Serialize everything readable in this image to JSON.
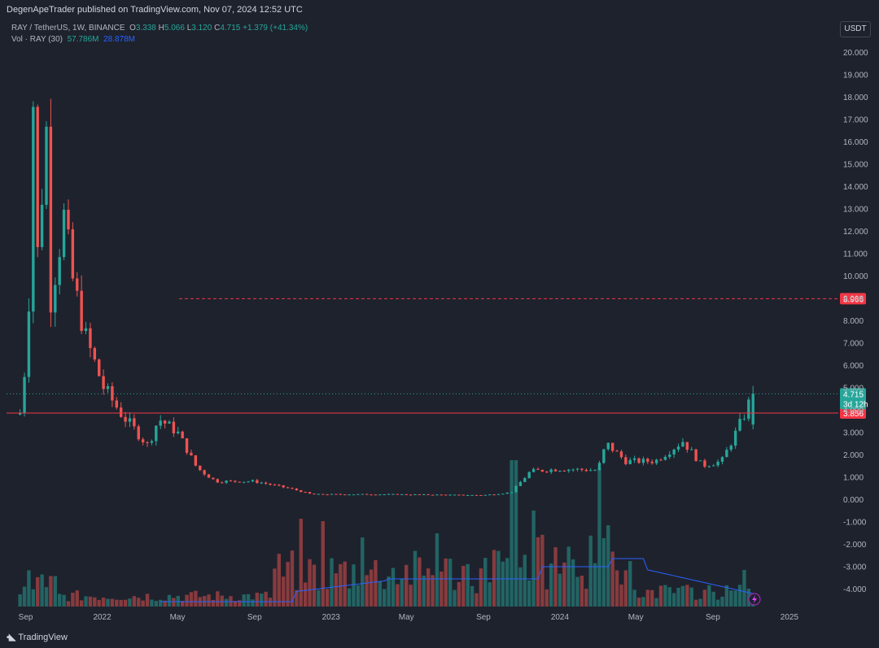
{
  "header": {
    "published": "DegenApeTrader published on TradingView.com, Nov 07, 2024 12:52 UTC",
    "symbol": "RAY / TetherUS, 1W, BINANCE",
    "o_label": "O",
    "o_value": "3.338",
    "h_label": "H",
    "h_value": "5.066",
    "l_label": "L",
    "l_value": "3.120",
    "c_label": "C",
    "c_value": "4.715",
    "change": "+1.379 (+41.34%)",
    "vol_label": "Vol · RAY (30)",
    "vol_value": "57.786M",
    "vol_ma_value": "28.878M",
    "currency_button": "USDT"
  },
  "footer": {
    "brand": "TradingView"
  },
  "chart_data": {
    "type": "candlestick",
    "title": "RAY / TetherUS, 1W, BINANCE",
    "y_ticks": [
      "20.000",
      "19.000",
      "18.000",
      "17.000",
      "16.000",
      "15.000",
      "14.000",
      "13.000",
      "12.000",
      "11.000",
      "10.000",
      "9.000",
      "8.000",
      "7.000",
      "6.000",
      "5.000",
      "4.000",
      "3.000",
      "2.000",
      "1.000",
      "0.000",
      "-1.000",
      "-2.000",
      "-3.000",
      "-4.000"
    ],
    "y_tick_values": [
      20,
      19,
      18,
      17,
      16,
      15,
      14,
      13,
      12,
      11,
      10,
      9,
      8,
      7,
      6,
      5,
      4,
      3,
      2,
      1,
      0,
      -1,
      -2,
      -3,
      -4
    ],
    "x_ticks": [
      "Sep",
      "2022",
      "May",
      "Sep",
      "2023",
      "May",
      "Sep",
      "2024",
      "May",
      "Sep",
      "2025"
    ],
    "x_tick_dates": [
      "2021-09-01",
      "2022-01-01",
      "2022-05-01",
      "2022-09-01",
      "2023-01-01",
      "2023-05-01",
      "2023-09-01",
      "2024-01-01",
      "2024-05-01",
      "2024-09-01",
      "2025-01-01"
    ],
    "ylim": [
      -4.9,
      20.6
    ],
    "xlim": [
      "2021-07-22",
      "2025-03-20"
    ],
    "horizontal_lines": [
      {
        "value": 8.966,
        "label": "8.966",
        "style": "dashed",
        "color": "#f23645"
      },
      {
        "value": 3.856,
        "label": "3.856",
        "style": "solid",
        "color": "#f23645"
      },
      {
        "value": 4.715,
        "label": "4.715",
        "sublabel": "3d 12h",
        "style": "dotted",
        "color": "#26a69a"
      }
    ],
    "key_points": [
      {
        "date": "2021-08-23",
        "price": 3.86
      },
      {
        "date": "2021-08-30",
        "price": 5.7
      },
      {
        "date": "2021-09-06",
        "price": 9.0
      },
      {
        "date": "2021-09-13",
        "price": 17.8
      },
      {
        "date": "2021-09-20",
        "price": 11.0
      },
      {
        "date": "2021-10-04",
        "price": 16.5
      },
      {
        "date": "2021-10-11",
        "price": 9.0
      },
      {
        "date": "2021-11-01",
        "price": 12.6
      },
      {
        "date": "2021-11-15",
        "price": 9.8
      },
      {
        "date": "2021-12-06",
        "price": 7.2
      },
      {
        "date": "2022-01-03",
        "price": 5.0
      },
      {
        "date": "2022-02-01",
        "price": 3.8
      },
      {
        "date": "2022-03-15",
        "price": 2.4
      },
      {
        "date": "2022-04-01",
        "price": 3.6
      },
      {
        "date": "2022-05-01",
        "price": 3.0
      },
      {
        "date": "2022-06-01",
        "price": 1.4
      },
      {
        "date": "2022-07-01",
        "price": 0.8
      },
      {
        "date": "2022-09-01",
        "price": 0.8
      },
      {
        "date": "2022-11-01",
        "price": 0.45
      },
      {
        "date": "2022-12-01",
        "price": 0.22
      },
      {
        "date": "2023-04-01",
        "price": 0.22
      },
      {
        "date": "2023-09-01",
        "price": 0.18
      },
      {
        "date": "2023-10-15",
        "price": 0.3
      },
      {
        "date": "2023-11-15",
        "price": 1.25
      },
      {
        "date": "2024-01-01",
        "price": 1.35
      },
      {
        "date": "2024-03-01",
        "price": 1.3
      },
      {
        "date": "2024-03-15",
        "price": 2.5
      },
      {
        "date": "2024-04-15",
        "price": 1.7
      },
      {
        "date": "2024-06-01",
        "price": 1.7
      },
      {
        "date": "2024-07-15",
        "price": 2.6
      },
      {
        "date": "2024-08-15",
        "price": 1.5
      },
      {
        "date": "2024-09-15",
        "price": 1.7
      },
      {
        "date": "2024-10-15",
        "price": 3.4
      },
      {
        "date": "2024-11-04",
        "price": 4.715
      }
    ],
    "volume": {
      "series_name": "Vol · RAY (30)",
      "last": "57.786M",
      "ma_last": "28.878M"
    },
    "grid": false,
    "colors": {
      "up": "#26a69a",
      "down": "#ef5350",
      "ma": "#2962ff",
      "background": "#1e222d",
      "axis_text": "#b2b5be"
    }
  }
}
